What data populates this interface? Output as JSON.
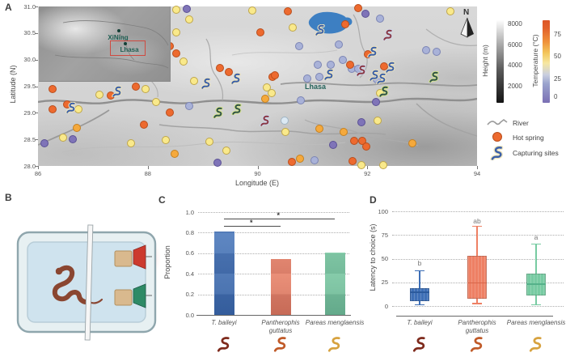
{
  "panel_a": {
    "label": "A",
    "x_axis": {
      "label": "Longitude (E)",
      "ticks": [
        86,
        88,
        90,
        92,
        94
      ],
      "range": [
        86,
        94
      ]
    },
    "y_axis": {
      "label": "Latitude (N)",
      "ticks": [
        "31.0",
        "30.5",
        "30.0",
        "29.5",
        "29.0",
        "28.5",
        "28.0"
      ],
      "range": [
        28,
        31
      ]
    },
    "map_city_label": "Lhasa",
    "north_label": "N",
    "inset": {
      "city1": "XiNing",
      "city2": "Lhasa"
    },
    "colorbar_height": {
      "label": "Height (m)",
      "ticks": [
        "8000",
        "6000",
        "4000",
        "2000"
      ]
    },
    "colorbar_temp": {
      "label": "Temperature (°C)",
      "ticks": [
        "75",
        "50",
        "25",
        "0"
      ]
    },
    "legend": {
      "river": "River",
      "hot_spring": "Hot spring",
      "capturing": "Capturing sites"
    }
  },
  "panel_b": {
    "label": "B"
  },
  "panel_c": {
    "label": "C"
  },
  "panel_d": {
    "label": "D"
  },
  "colors": {
    "temp_palette": {
      "O": {
        "fill": "#ed6a2f",
        "edge": "#b94e1d",
        "temp_c": 75
      },
      "YO": {
        "fill": "#f5a93c",
        "edge": "#c5801f",
        "temp_c": 60
      },
      "Y": {
        "fill": "#f9e98b",
        "edge": "#bfa649",
        "temp_c": 50
      },
      "LB": {
        "fill": "#dce9f3",
        "edge": "#9fb4c4",
        "temp_c": 30
      },
      "B": {
        "fill": "#a9b2d8",
        "edge": "#7b84b4",
        "temp_c": 25
      },
      "P": {
        "fill": "#7f74b8",
        "edge": "#5a5095",
        "temp_c": 5
      }
    },
    "snake_palette": {
      "b": {
        "body": "#3a5fa8",
        "outline": "#f0e6be"
      },
      "r": {
        "body": "#8a3844",
        "outline": "#cfd8ea"
      },
      "g": {
        "body": "#2f5348",
        "outline": "#d8e48e"
      }
    },
    "bar_colors": [
      "#3e6fb6",
      "#ee8064",
      "#77cba2"
    ],
    "bar_dark": [
      "#2c5a9c",
      "#d8664a",
      "#55b18a"
    ],
    "species_icon_colors": [
      "#7e2a1c",
      "#c05a28",
      "#d7a23f"
    ],
    "lake": "#3d7fc2",
    "river": "#929292",
    "hot_spring_legend": "#ed6a2f"
  },
  "chart_data": [
    {
      "type": "scatter",
      "title": "Hot springs and capturing sites, Tibetan Plateau",
      "xlabel": "Longitude (E)",
      "ylabel": "Latitude (N)",
      "xlim": [
        86,
        94
      ],
      "ylim": [
        28,
        31
      ],
      "legend_position": "right",
      "series": [
        {
          "name": "Hot spring",
          "note": "color encodes water temperature (°C) per temp_palette",
          "points": [
            [
              88.52,
              30.94,
              "Y"
            ],
            [
              88.71,
              30.95,
              "P"
            ],
            [
              88.75,
              30.75,
              "Y"
            ],
            [
              88.52,
              30.52,
              "Y"
            ],
            [
              89.9,
              30.92,
              "Y"
            ],
            [
              90.05,
              30.52,
              "O"
            ],
            [
              90.55,
              30.91,
              "O"
            ],
            [
              90.64,
              30.61,
              "Y"
            ],
            [
              91.83,
              30.97,
              "O"
            ],
            [
              91.96,
              30.86,
              "P"
            ],
            [
              91.6,
              30.67,
              "O"
            ],
            [
              92.23,
              30.77,
              "B"
            ],
            [
              93.52,
              30.91,
              "Y"
            ],
            [
              93.26,
              30.14,
              "B"
            ],
            [
              86.27,
              29.44,
              "O"
            ],
            [
              86.53,
              29.16,
              "O"
            ],
            [
              86.27,
              29.06,
              "O"
            ],
            [
              86.71,
              28.71,
              "YO"
            ],
            [
              86.46,
              28.54,
              "Y"
            ],
            [
              86.63,
              28.51,
              "P"
            ],
            [
              86.12,
              28.42,
              "P"
            ],
            [
              86.74,
              29.06,
              "Y"
            ],
            [
              87.12,
              29.34,
              "Y"
            ],
            [
              87.33,
              29.32,
              "O"
            ],
            [
              87.78,
              29.49,
              "O"
            ],
            [
              87.96,
              29.44,
              "Y"
            ],
            [
              88.4,
              29.01,
              "O"
            ],
            [
              88.15,
              29.21,
              "Y"
            ],
            [
              87.93,
              28.78,
              "O"
            ],
            [
              88.33,
              28.48,
              "Y"
            ],
            [
              87.69,
              28.43,
              "Y"
            ],
            [
              88.49,
              28.23,
              "YO"
            ],
            [
              88.76,
              29.13,
              "B"
            ],
            [
              88.84,
              29.6,
              "Y"
            ],
            [
              89.12,
              28.45,
              "Y"
            ],
            [
              89.43,
              28.29,
              "Y"
            ],
            [
              89.32,
              29.85,
              "O"
            ],
            [
              89.48,
              29.77,
              "O"
            ],
            [
              88.65,
              29.97,
              "Y"
            ],
            [
              88.52,
              30.11,
              "O"
            ],
            [
              88.4,
              30.25,
              "O"
            ],
            [
              90.27,
              29.68,
              "O"
            ],
            [
              90.9,
              29.65,
              "B"
            ],
            [
              91.13,
              29.68,
              "B"
            ],
            [
              90.49,
              28.85,
              "LB"
            ],
            [
              90.51,
              28.64,
              "Y"
            ],
            [
              91.12,
              28.7,
              "YO"
            ],
            [
              91.57,
              28.64,
              "YO"
            ],
            [
              91.89,
              28.82,
              "P"
            ],
            [
              92.19,
              28.85,
              "Y"
            ],
            [
              91.38,
              28.39,
              "P"
            ],
            [
              91.76,
              28.47,
              "O"
            ],
            [
              91.91,
              28.47,
              "O"
            ],
            [
              91.98,
              28.36,
              "O"
            ],
            [
              92.82,
              28.43,
              "YO"
            ],
            [
              92.23,
              29.37,
              "Y"
            ],
            [
              92.16,
              29.21,
              "P"
            ],
            [
              91.71,
              29.83,
              "B"
            ],
            [
              92.01,
              30.1,
              "O"
            ],
            [
              92.3,
              29.88,
              "O"
            ],
            [
              92.17,
              29.63,
              "B"
            ],
            [
              93.07,
              30.18,
              "B"
            ],
            [
              89.27,
              28.06,
              "P"
            ],
            [
              90.62,
              28.08,
              "O"
            ],
            [
              90.77,
              28.14,
              "YO"
            ],
            [
              91.04,
              28.11,
              "B"
            ],
            [
              91.73,
              28.09,
              "O"
            ],
            [
              91.89,
              28.01,
              "Y"
            ],
            [
              92.29,
              28.01,
              "Y"
            ],
            [
              91.68,
              29.91,
              "O"
            ],
            [
              90.76,
              30.25,
              "B"
            ],
            [
              91.48,
              30.28,
              "B"
            ],
            [
              91.1,
              29.91,
              "B"
            ],
            [
              91.33,
              29.91,
              "B"
            ],
            [
              91.55,
              30.0,
              "B"
            ],
            [
              91.83,
              29.82,
              "B"
            ],
            [
              90.32,
              29.71,
              "O"
            ],
            [
              90.17,
              29.48,
              "Y"
            ],
            [
              90.26,
              29.37,
              "Y"
            ],
            [
              90.14,
              29.26,
              "YO"
            ],
            [
              90.79,
              29.24,
              "B"
            ]
          ]
        },
        {
          "name": "Capturing sites",
          "points": [
            [
              91.14,
              30.56,
              "b"
            ],
            [
              92.38,
              30.46,
              "r"
            ],
            [
              86.6,
              29.09,
              "b"
            ],
            [
              87.44,
              29.4,
              "b"
            ],
            [
              89.06,
              29.55,
              "b"
            ],
            [
              89.28,
              29.01,
              "g"
            ],
            [
              89.62,
              29.06,
              "g"
            ],
            [
              90.14,
              28.85,
              "r"
            ],
            [
              92.13,
              29.71,
              "b"
            ],
            [
              93.22,
              29.68,
              "g"
            ],
            [
              92.3,
              29.4,
              "g"
            ],
            [
              92.1,
              30.14,
              "b"
            ],
            [
              92.42,
              29.86,
              "b"
            ],
            [
              92.26,
              29.65,
              "b"
            ],
            [
              91.89,
              29.79,
              "r"
            ],
            [
              89.61,
              29.65,
              "b"
            ],
            [
              91.3,
              29.72,
              "b"
            ]
          ]
        }
      ]
    },
    {
      "type": "bar",
      "categories": [
        "T. baileyi",
        "Pantherophis guttatus",
        "Pareas menglaensis"
      ],
      "values": [
        0.81,
        0.54,
        0.61
      ],
      "title": "",
      "xlabel": "",
      "ylabel": "Proportion",
      "ylim": [
        0,
        1.0
      ],
      "yticks": [
        0.0,
        0.2,
        0.4,
        0.6,
        0.8,
        1.0
      ],
      "grid": "dotted",
      "significance": [
        {
          "from": 0,
          "to": 1,
          "label": "*",
          "y": 0.87
        },
        {
          "from": 0,
          "to": 2,
          "label": "*",
          "y": 0.94
        }
      ]
    },
    {
      "type": "box",
      "categories": [
        "T. baileyi",
        "Pantherophis guttatus",
        "Pareas menglaensis"
      ],
      "title": "",
      "xlabel": "",
      "ylabel": "Latency to choice (s)",
      "ylim": [
        0,
        100
      ],
      "yticks": [
        0,
        25,
        50,
        75,
        100
      ],
      "grid": "dotted",
      "boxes": [
        {
          "whisker_low": 2,
          "q1": 5,
          "median": 15,
          "q3": 19,
          "whisker_high": 38,
          "letter": "b",
          "letter_y": 45
        },
        {
          "whisker_low": 3,
          "q1": 8,
          "median": 25,
          "q3": 53,
          "whisker_high": 85,
          "letter": "ab",
          "letter_y": 90
        },
        {
          "whisker_low": 2,
          "q1": 11,
          "median": 24,
          "q3": 34,
          "whisker_high": 66,
          "letter": "a",
          "letter_y": 73
        }
      ]
    }
  ]
}
